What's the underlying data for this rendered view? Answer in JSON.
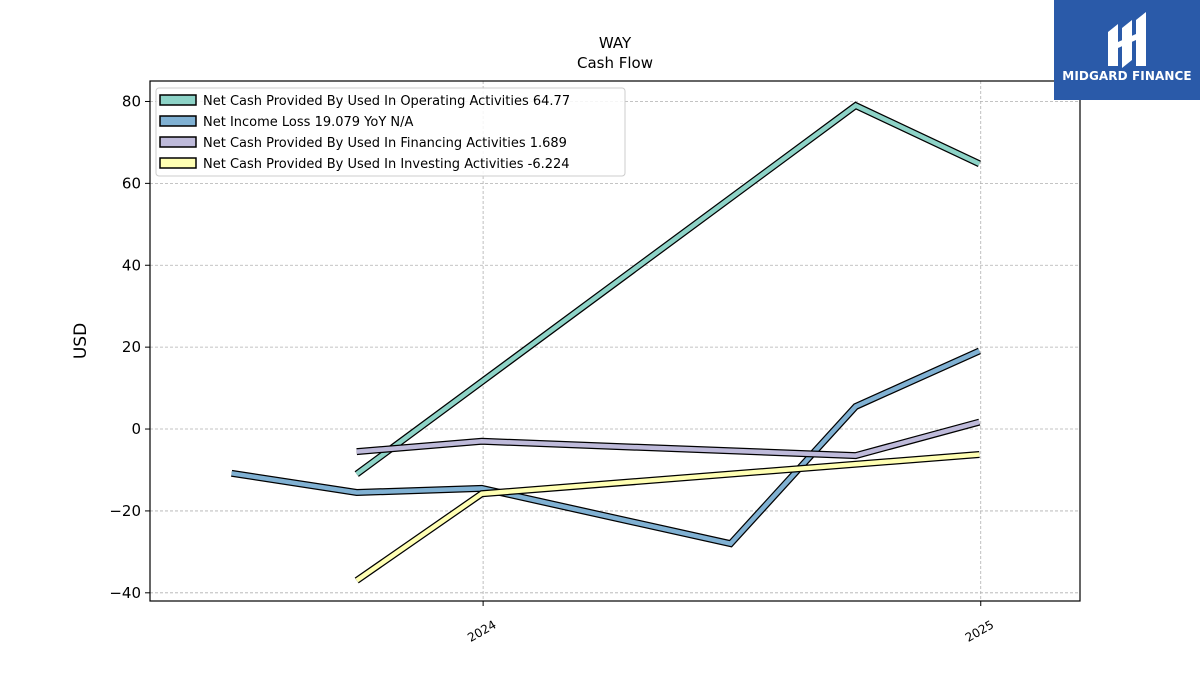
{
  "chart_data": {
    "type": "line",
    "title": "WAY",
    "subtitle": "Cash Flow",
    "xlabel": "",
    "ylabel": "USD",
    "x_ticks": [
      {
        "date": "2024-01-01",
        "label": "2024"
      },
      {
        "date": "2025-01-01",
        "label": "2025"
      }
    ],
    "xlim": [
      "2023-05-01",
      "2025-03-15"
    ],
    "ylim": [
      -42,
      85
    ],
    "y_ticks": [
      80,
      60,
      40,
      20,
      0,
      -20,
      -40
    ],
    "grid": true,
    "legend_position": "top-left",
    "series": [
      {
        "name": "Net Cash Provided By Used In Operating Activities  64.77",
        "color": "#8dd3c7",
        "points": [
          {
            "x": "2023-09-30",
            "y": -11.0
          },
          {
            "x": "2024-10-01",
            "y": 79.0
          },
          {
            "x": "2024-12-31",
            "y": 64.77
          }
        ]
      },
      {
        "name": "Net Income Loss  19.079 YoY N/A",
        "color": "#80b1d3",
        "points": [
          {
            "x": "2023-06-30",
            "y": -10.8
          },
          {
            "x": "2023-09-30",
            "y": -15.5
          },
          {
            "x": "2023-12-31",
            "y": -14.5
          },
          {
            "x": "2024-07-01",
            "y": -28.0
          },
          {
            "x": "2024-10-01",
            "y": 5.5
          },
          {
            "x": "2024-12-31",
            "y": 19.079
          }
        ]
      },
      {
        "name": "Net Cash Provided By Used In Financing Activities  1.689",
        "color": "#bebada",
        "points": [
          {
            "x": "2023-09-30",
            "y": -5.5
          },
          {
            "x": "2023-12-31",
            "y": -3.0
          },
          {
            "x": "2024-10-01",
            "y": -6.5
          },
          {
            "x": "2024-12-31",
            "y": 1.689
          }
        ]
      },
      {
        "name": "Net Cash Provided By Used In Investing Activities  -6.224",
        "color": "#ffffb3",
        "points": [
          {
            "x": "2023-09-30",
            "y": -37.0
          },
          {
            "x": "2023-12-31",
            "y": -15.8
          },
          {
            "x": "2024-12-31",
            "y": -6.224
          }
        ]
      }
    ]
  },
  "logo": {
    "text": "MIDGARD FINANCE",
    "background": "#2a5aa9"
  }
}
